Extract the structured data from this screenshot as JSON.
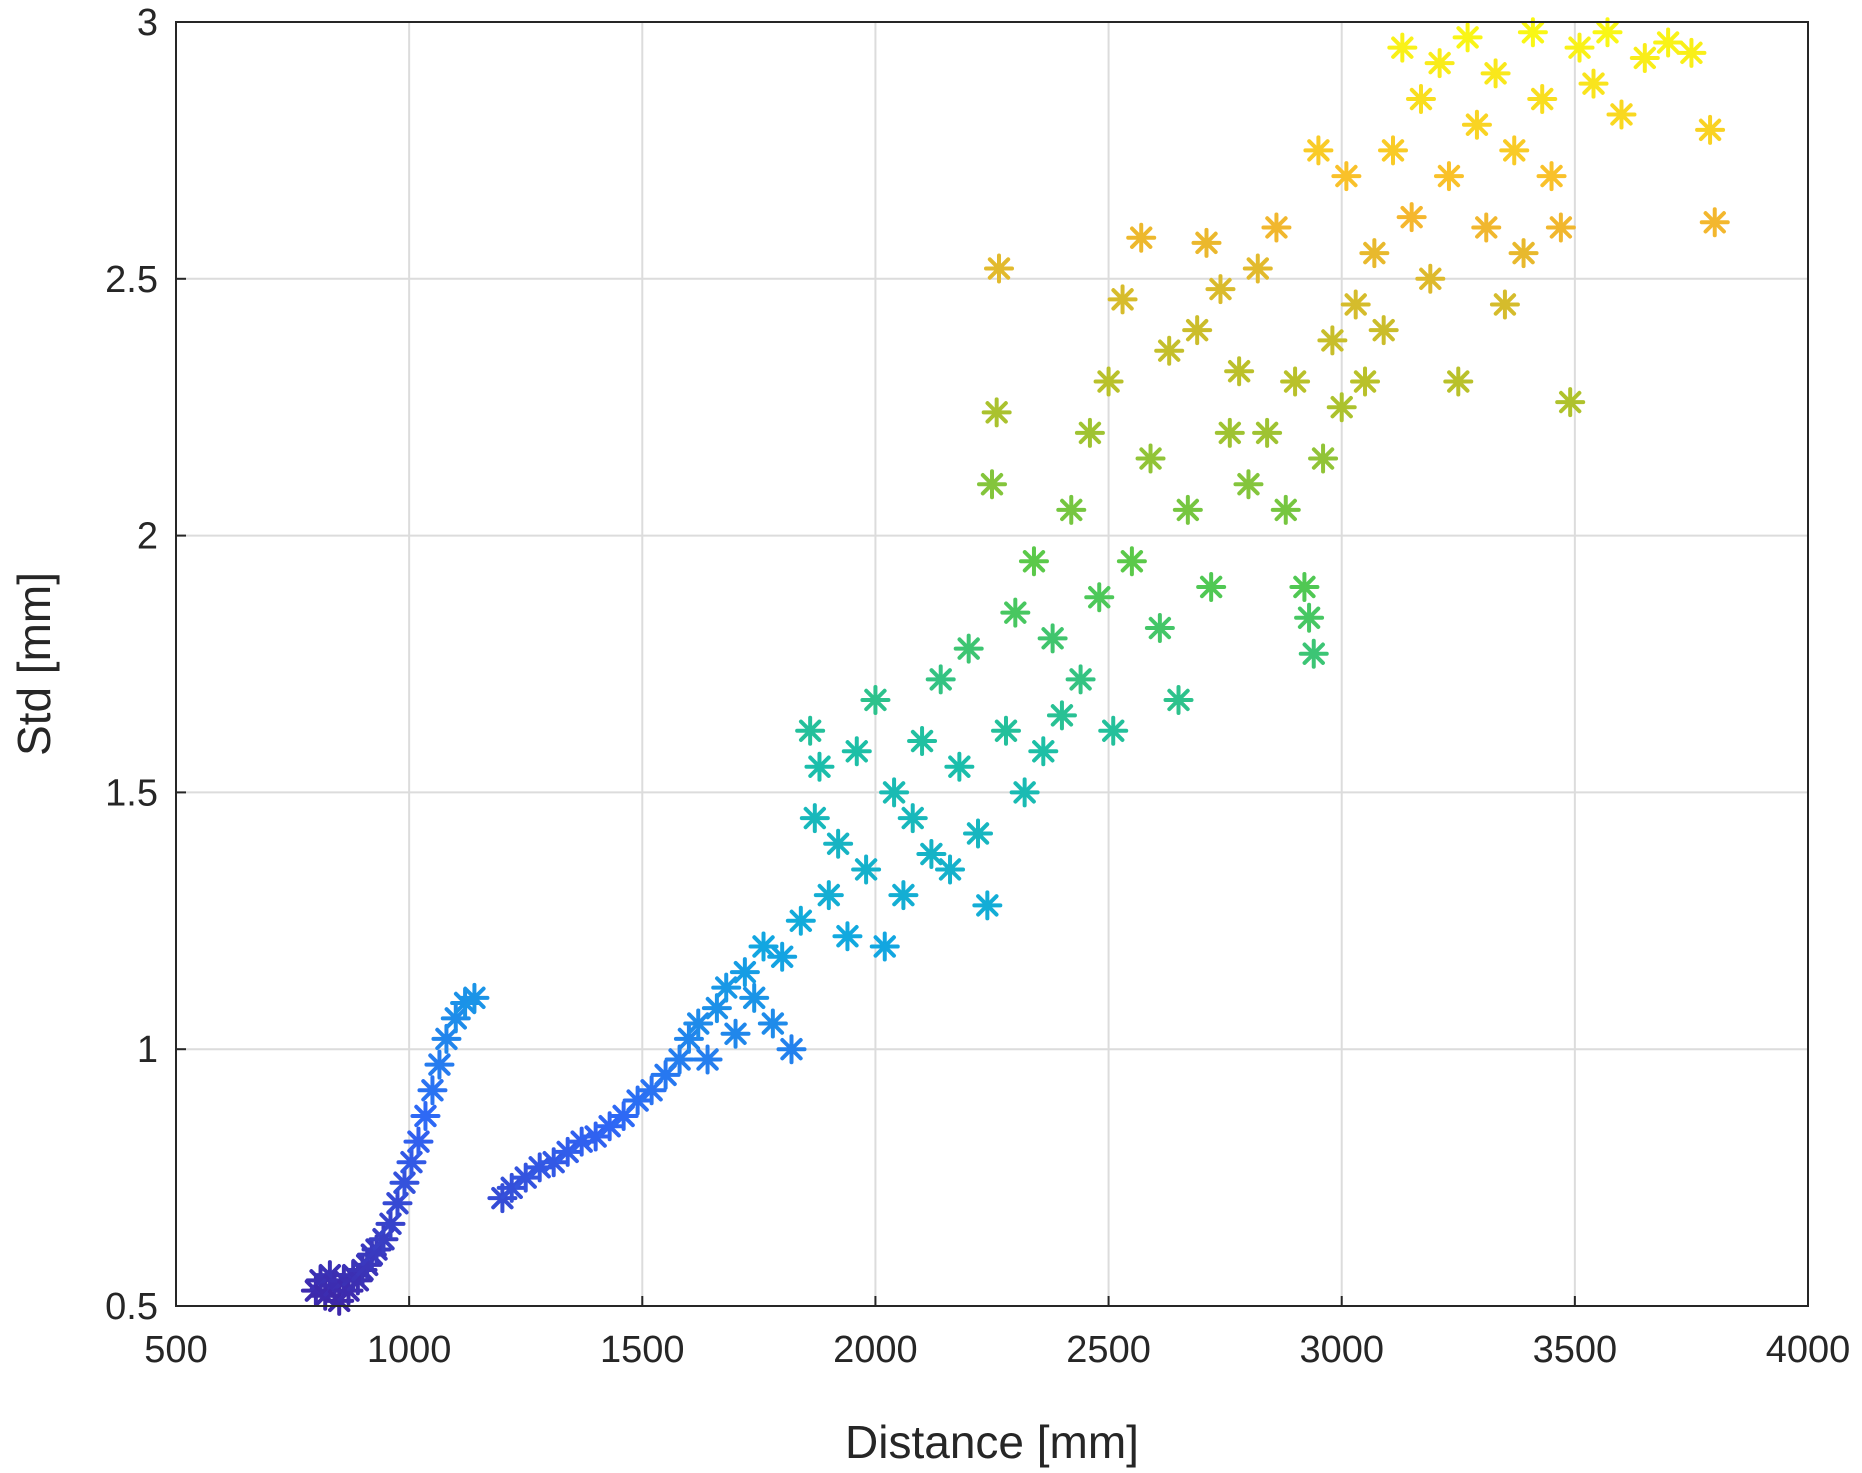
{
  "chart_data": {
    "type": "scatter",
    "title": "",
    "xlabel": "Distance [mm]",
    "ylabel": "Std [mm]",
    "xlim": [
      500,
      4000
    ],
    "ylim": [
      0.5,
      3
    ],
    "xticks": [
      500,
      1000,
      1500,
      2000,
      2500,
      3000,
      3500,
      4000
    ],
    "yticks": [
      0.5,
      1,
      1.5,
      2,
      2.5,
      3
    ],
    "xtick_labels": [
      "500",
      "1000",
      "1500",
      "2000",
      "2500",
      "3000",
      "3500",
      "4000"
    ],
    "ytick_labels": [
      "0.5",
      "1",
      "1.5",
      "2",
      "2.5",
      "3"
    ],
    "grid": true,
    "marker": "asterisk",
    "colormap": "parula (color by Std value)",
    "colormap_stops": [
      "#3e26a8",
      "#2f67f6",
      "#11a9e0",
      "#1cbfa8",
      "#55c94c",
      "#b6c12a",
      "#f9b62e",
      "#f9fb14"
    ],
    "series": [
      {
        "values": [
          [
            800,
            0.53
          ],
          [
            810,
            0.55
          ],
          [
            820,
            0.52
          ],
          [
            830,
            0.56
          ],
          [
            840,
            0.54
          ],
          [
            850,
            0.51
          ],
          [
            860,
            0.55
          ],
          [
            870,
            0.53
          ],
          [
            880,
            0.56
          ],
          [
            890,
            0.55
          ],
          [
            900,
            0.57
          ],
          [
            910,
            0.58
          ],
          [
            920,
            0.6
          ],
          [
            930,
            0.61
          ],
          [
            945,
            0.63
          ],
          [
            960,
            0.66
          ],
          [
            975,
            0.7
          ],
          [
            990,
            0.74
          ],
          [
            1005,
            0.78
          ],
          [
            1020,
            0.82
          ],
          [
            1035,
            0.87
          ],
          [
            1050,
            0.92
          ],
          [
            1065,
            0.97
          ],
          [
            1080,
            1.02
          ],
          [
            1100,
            1.06
          ],
          [
            1120,
            1.09
          ],
          [
            1140,
            1.1
          ],
          [
            1200,
            0.71
          ],
          [
            1220,
            0.73
          ],
          [
            1250,
            0.75
          ],
          [
            1280,
            0.77
          ],
          [
            1310,
            0.78
          ],
          [
            1340,
            0.8
          ],
          [
            1370,
            0.82
          ],
          [
            1400,
            0.83
          ],
          [
            1430,
            0.85
          ],
          [
            1460,
            0.87
          ],
          [
            1490,
            0.9
          ],
          [
            1520,
            0.92
          ],
          [
            1550,
            0.95
          ],
          [
            1580,
            0.98
          ],
          [
            1600,
            1.02
          ],
          [
            1620,
            1.05
          ],
          [
            1640,
            0.98
          ],
          [
            1660,
            1.08
          ],
          [
            1680,
            1.12
          ],
          [
            1700,
            1.03
          ],
          [
            1720,
            1.15
          ],
          [
            1740,
            1.1
          ],
          [
            1760,
            1.2
          ],
          [
            1780,
            1.05
          ],
          [
            1800,
            1.18
          ],
          [
            1820,
            1.0
          ],
          [
            1840,
            1.25
          ],
          [
            1860,
            1.62
          ],
          [
            1870,
            1.45
          ],
          [
            1880,
            1.55
          ],
          [
            1900,
            1.3
          ],
          [
            1920,
            1.4
          ],
          [
            1940,
            1.22
          ],
          [
            1960,
            1.58
          ],
          [
            1980,
            1.35
          ],
          [
            2000,
            1.68
          ],
          [
            2020,
            1.2
          ],
          [
            2040,
            1.5
          ],
          [
            2060,
            1.3
          ],
          [
            2080,
            1.45
          ],
          [
            2100,
            1.6
          ],
          [
            2120,
            1.38
          ],
          [
            2140,
            1.72
          ],
          [
            2160,
            1.35
          ],
          [
            2180,
            1.55
          ],
          [
            2200,
            1.78
          ],
          [
            2220,
            1.42
          ],
          [
            2240,
            1.28
          ],
          [
            2250,
            2.1
          ],
          [
            2260,
            2.24
          ],
          [
            2265,
            2.52
          ],
          [
            2280,
            1.62
          ],
          [
            2300,
            1.85
          ],
          [
            2320,
            1.5
          ],
          [
            2340,
            1.95
          ],
          [
            2360,
            1.58
          ],
          [
            2380,
            1.8
          ],
          [
            2400,
            1.65
          ],
          [
            2420,
            2.05
          ],
          [
            2440,
            1.72
          ],
          [
            2460,
            2.2
          ],
          [
            2480,
            1.88
          ],
          [
            2500,
            2.3
          ],
          [
            2510,
            1.62
          ],
          [
            2530,
            2.46
          ],
          [
            2550,
            1.95
          ],
          [
            2570,
            2.58
          ],
          [
            2590,
            2.15
          ],
          [
            2610,
            1.82
          ],
          [
            2630,
            2.36
          ],
          [
            2650,
            1.68
          ],
          [
            2670,
            2.05
          ],
          [
            2690,
            2.4
          ],
          [
            2710,
            2.57
          ],
          [
            2720,
            1.9
          ],
          [
            2740,
            2.48
          ],
          [
            2760,
            2.2
          ],
          [
            2780,
            2.32
          ],
          [
            2800,
            2.1
          ],
          [
            2820,
            2.52
          ],
          [
            2840,
            2.2
          ],
          [
            2860,
            2.6
          ],
          [
            2880,
            2.05
          ],
          [
            2900,
            2.3
          ],
          [
            2920,
            1.9
          ],
          [
            2930,
            1.84
          ],
          [
            2940,
            1.77
          ],
          [
            2950,
            2.75
          ],
          [
            2960,
            2.15
          ],
          [
            2980,
            2.38
          ],
          [
            3000,
            2.25
          ],
          [
            3010,
            2.7
          ],
          [
            3030,
            2.45
          ],
          [
            3050,
            2.3
          ],
          [
            3070,
            2.55
          ],
          [
            3090,
            2.4
          ],
          [
            3110,
            2.75
          ],
          [
            3130,
            2.95
          ],
          [
            3150,
            2.62
          ],
          [
            3170,
            2.85
          ],
          [
            3190,
            2.5
          ],
          [
            3210,
            2.92
          ],
          [
            3230,
            2.7
          ],
          [
            3250,
            2.3
          ],
          [
            3270,
            2.97
          ],
          [
            3290,
            2.8
          ],
          [
            3310,
            2.6
          ],
          [
            3330,
            2.9
          ],
          [
            3350,
            2.45
          ],
          [
            3370,
            2.75
          ],
          [
            3390,
            2.55
          ],
          [
            3410,
            2.98
          ],
          [
            3430,
            2.85
          ],
          [
            3450,
            2.7
          ],
          [
            3470,
            2.6
          ],
          [
            3490,
            2.26
          ],
          [
            3510,
            2.95
          ],
          [
            3540,
            2.88
          ],
          [
            3570,
            2.98
          ],
          [
            3600,
            2.82
          ],
          [
            3650,
            2.93
          ],
          [
            3700,
            2.96
          ],
          [
            3750,
            2.94
          ],
          [
            3790,
            2.79
          ],
          [
            3800,
            2.61
          ]
        ]
      }
    ]
  }
}
